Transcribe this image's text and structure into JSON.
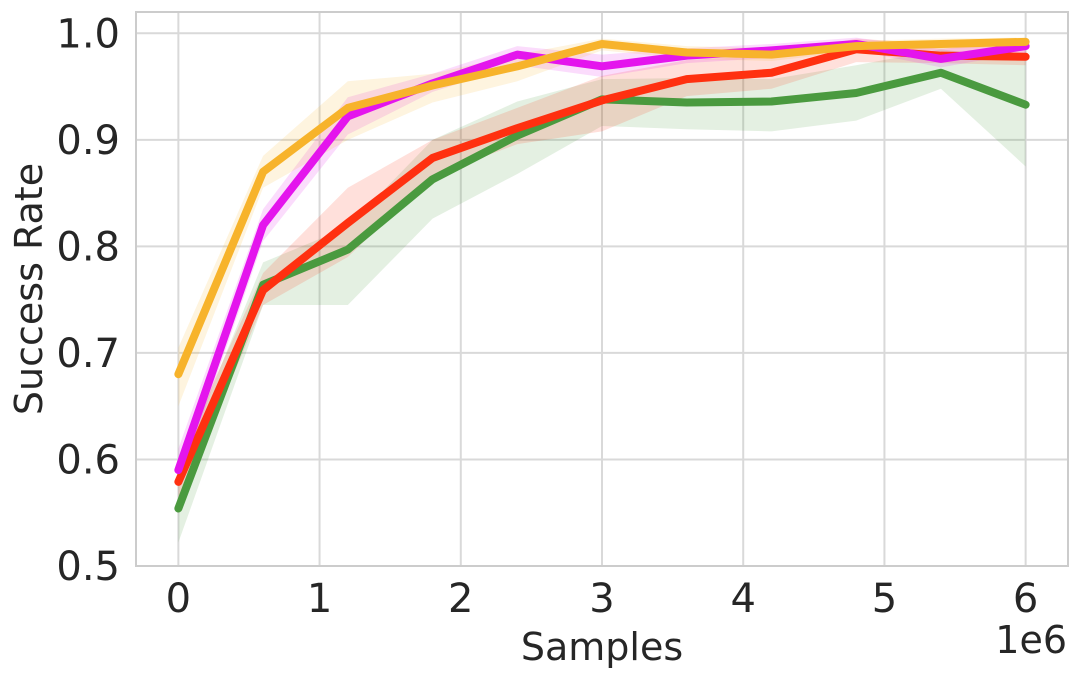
{
  "chart_data": {
    "type": "line",
    "xlabel": "Samples",
    "ylabel": "Success Rate",
    "x_offset_label": "1e6",
    "xlim": [
      -0.3,
      6.3
    ],
    "ylim": [
      0.5,
      1.02
    ],
    "xticks": [
      0,
      1,
      2,
      3,
      4,
      5,
      6
    ],
    "xtick_labels": [
      "0",
      "1",
      "2",
      "3",
      "4",
      "5",
      "6"
    ],
    "yticks": [
      0.5,
      0.6,
      0.7,
      0.8,
      0.9,
      1.0
    ],
    "ytick_labels": [
      "0.5",
      "0.6",
      "0.7",
      "0.8",
      "0.9",
      "1.0"
    ],
    "grid": true,
    "x": [
      0,
      0.6,
      1.2,
      1.8,
      2.4,
      3.0,
      3.6,
      4.2,
      4.8,
      5.4,
      6.0
    ],
    "series": [
      {
        "color": "#4a9a3f",
        "values": [
          0.554,
          0.764,
          0.797,
          0.863,
          0.904,
          0.938,
          0.935,
          0.936,
          0.944,
          0.963,
          0.933
        ],
        "lower": [
          0.522,
          0.745,
          0.745,
          0.826,
          0.868,
          0.913,
          0.91,
          0.908,
          0.918,
          0.948,
          0.875
        ],
        "upper": [
          0.59,
          0.785,
          0.818,
          0.9,
          0.936,
          0.957,
          0.958,
          0.957,
          0.97,
          0.985,
          0.975
        ]
      },
      {
        "color": "#ff3010",
        "values": [
          0.579,
          0.759,
          0.822,
          0.883,
          0.911,
          0.937,
          0.957,
          0.963,
          0.985,
          0.979,
          0.978
        ],
        "lower": [
          0.558,
          0.745,
          0.79,
          0.866,
          0.896,
          0.908,
          0.941,
          0.948,
          0.973,
          0.972,
          0.97
        ],
        "upper": [
          0.6,
          0.775,
          0.855,
          0.9,
          0.93,
          0.96,
          0.975,
          0.979,
          0.995,
          0.99,
          0.99
        ]
      },
      {
        "color": "#e415ed",
        "values": [
          0.59,
          0.82,
          0.922,
          0.953,
          0.98,
          0.969,
          0.979,
          0.984,
          0.99,
          0.976,
          0.988
        ],
        "lower": [
          0.575,
          0.805,
          0.905,
          0.945,
          0.97,
          0.959,
          0.972,
          0.977,
          0.984,
          0.968,
          0.982
        ],
        "upper": [
          0.61,
          0.835,
          0.94,
          0.962,
          0.988,
          0.98,
          0.986,
          0.99,
          0.996,
          0.985,
          0.994
        ]
      },
      {
        "color": "#f7b32b",
        "values": [
          0.68,
          0.87,
          0.93,
          0.951,
          0.969,
          0.99,
          0.982,
          0.98,
          0.988,
          0.99,
          0.992
        ],
        "lower": [
          0.65,
          0.855,
          0.9,
          0.935,
          0.955,
          0.984,
          0.976,
          0.974,
          0.983,
          0.985,
          0.988
        ],
        "upper": [
          0.705,
          0.885,
          0.955,
          0.962,
          0.98,
          0.995,
          0.988,
          0.986,
          0.993,
          0.995,
          0.996
        ]
      }
    ]
  }
}
